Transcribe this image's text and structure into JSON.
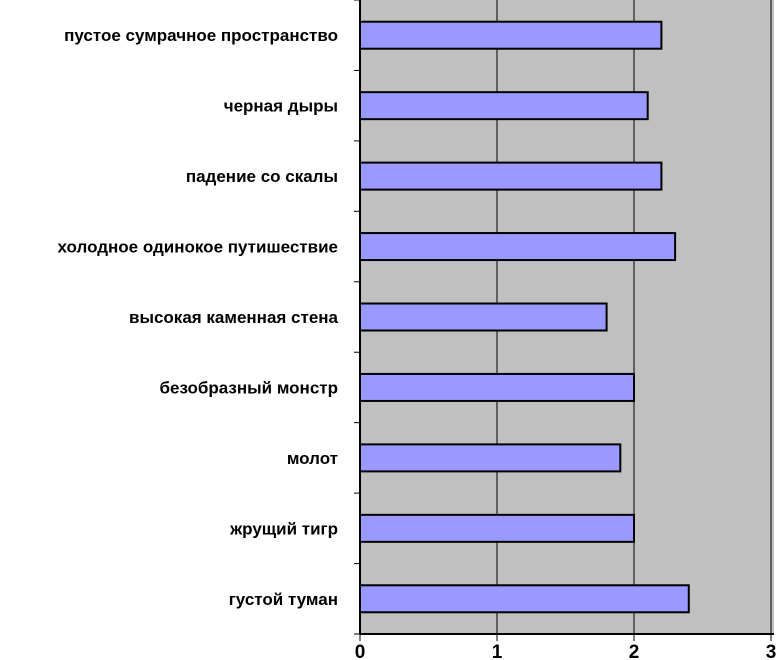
{
  "chart_data": {
    "type": "bar",
    "orientation": "horizontal",
    "categories": [
      "пустое сумрачное пространство",
      "черная дыры",
      "падение со скалы",
      "холодное одинокое путишествие",
      "высокая каменная стена",
      "безобразный монстр",
      "молот",
      "жрущий тигр",
      "густой туман"
    ],
    "values": [
      2.2,
      2.1,
      2.2,
      2.3,
      1.8,
      2.0,
      1.9,
      2.0,
      2.4
    ],
    "xlim": [
      0,
      3
    ],
    "xticks": [
      "0",
      "1",
      "2",
      "3"
    ],
    "title": "",
    "xlabel": "",
    "ylabel": "",
    "grid": "vertical",
    "legend": "none",
    "colors": {
      "bar_fill": "#9999ff",
      "bar_stroke": "#000000",
      "plot_background": "#c0c0c0",
      "gridline": "#000000"
    }
  }
}
